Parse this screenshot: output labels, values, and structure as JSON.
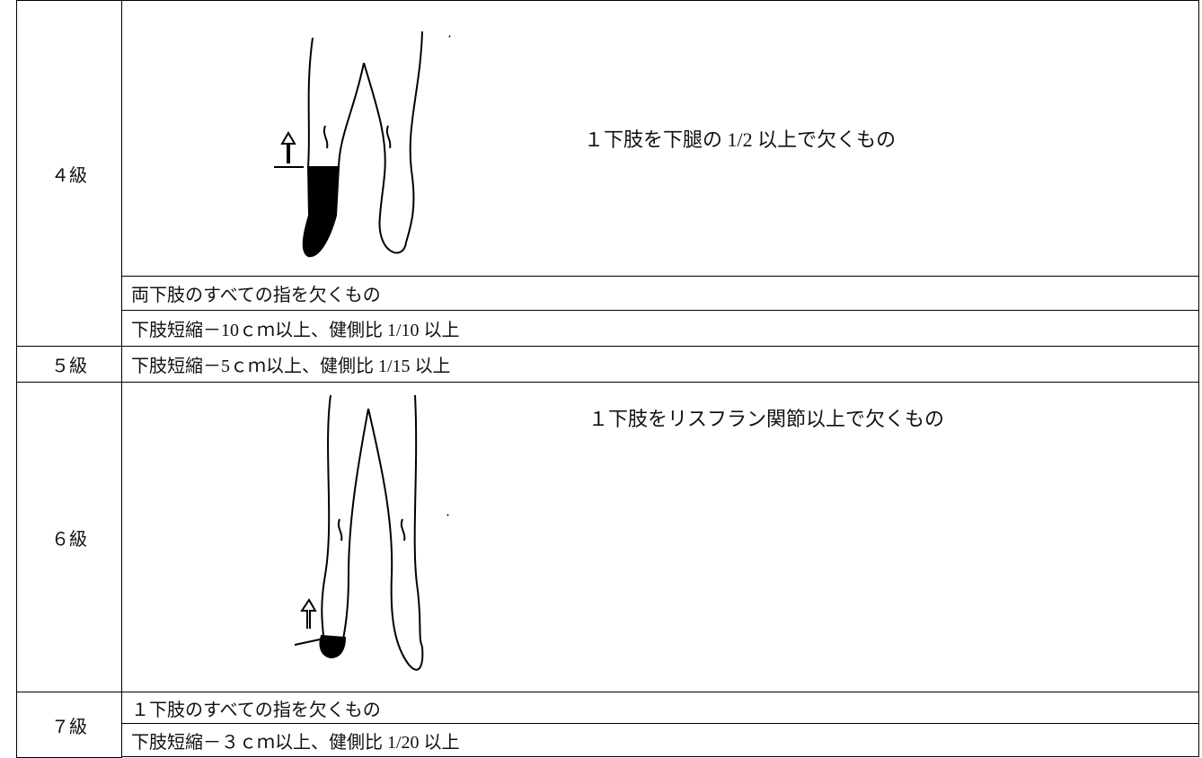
{
  "table": {
    "rows": [
      {
        "grade": "４級",
        "entries": [
          "１下肢を下腿の 1/2 以上で欠くもの",
          "両下肢のすべての指を欠くもの",
          "下肢短縮－10ｃｍ以上、健側比 1/10 以上"
        ]
      },
      {
        "grade": "５級",
        "entries": [
          "下肢短縮－5ｃｍ以上、健側比 1/15 以上"
        ]
      },
      {
        "grade": "６級",
        "entries": [
          "１下肢をリスフラン関節以上で欠くもの"
        ]
      },
      {
        "grade": "７級",
        "entries": [
          "１下肢のすべての指を欠くもの",
          "下肢短縮－３ｃｍ以上、健側比 1/20 以上"
        ]
      }
    ]
  }
}
